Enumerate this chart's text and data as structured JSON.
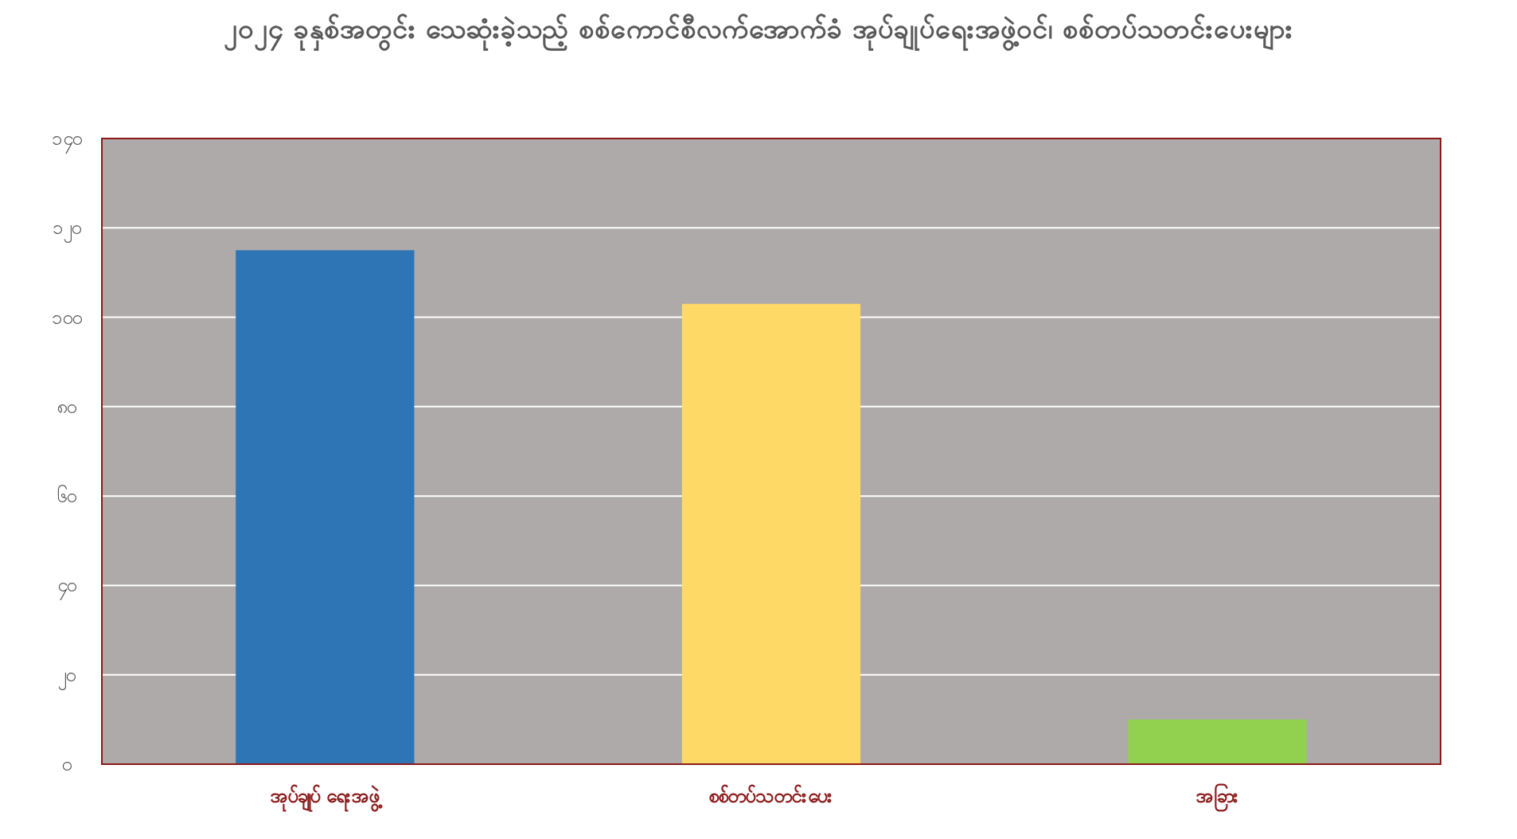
{
  "chart_data": {
    "type": "bar",
    "title": "၂၀၂၄ ခုနှစ်အတွင်း သေဆုံးခဲ့သည့် စစ်ကောင်စီလက်အောက်ခံ အုပ်ချုပ်ရေးအဖွဲ့ဝင်၊ စစ်တပ်သတင်းပေးများ",
    "categories": [
      "အုပ်ချုပ် ရေးအဖွဲ့",
      "စစ်တပ်သတင်းပေး",
      "အခြား"
    ],
    "values": [
      115,
      103,
      10
    ],
    "colors": [
      "#2e75b6",
      "#ffd966",
      "#92d050"
    ],
    "ylim": [
      0,
      140
    ],
    "yticks": [
      {
        "value": 0,
        "label": "၀"
      },
      {
        "value": 20,
        "label": "၂၀"
      },
      {
        "value": 40,
        "label": "၄၀"
      },
      {
        "value": 60,
        "label": "၆၀"
      },
      {
        "value": 80,
        "label": "၈၀"
      },
      {
        "value": 100,
        "label": "၁၀၀"
      },
      {
        "value": 120,
        "label": "၁၂၀"
      },
      {
        "value": 140,
        "label": "၁၄၀"
      }
    ],
    "grid": "y"
  }
}
